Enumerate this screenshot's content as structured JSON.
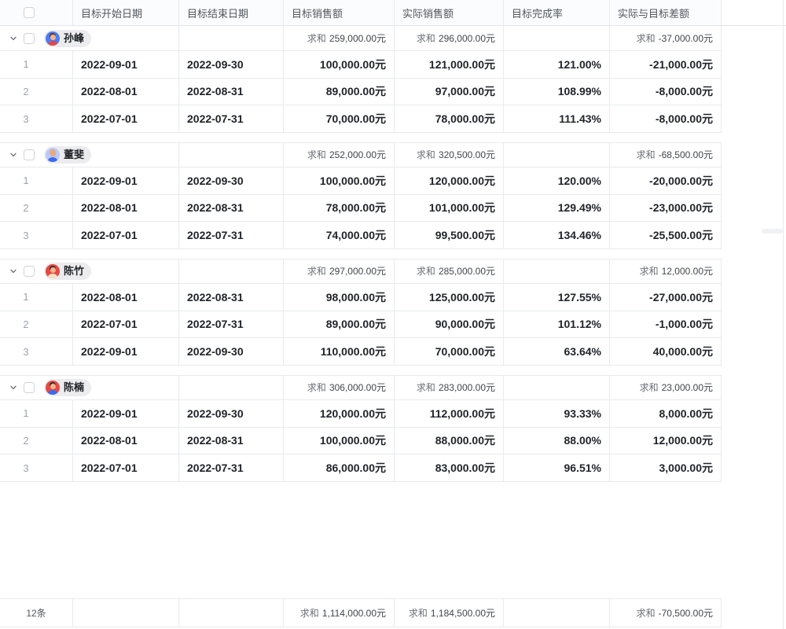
{
  "table": {
    "header": {
      "columns": [
        "目标开始日期",
        "目标结束日期",
        "目标销售额",
        "实际销售额",
        "目标完成率",
        "实际与目标差额"
      ]
    },
    "sum_label": "求和",
    "groups": [
      {
        "name": "孙峰",
        "avatar": {
          "bg": "#4a7cf7",
          "skin": "#f2b58a",
          "hair": "#5c3a2e",
          "body": "#e04947"
        },
        "sums": {
          "target": "259,000.00元",
          "actual": "296,000.00元",
          "rate": "",
          "diff": "-37,000.00元"
        },
        "rows": [
          {
            "num": "1",
            "start": "2022-09-01",
            "end": "2022-09-30",
            "target": "100,000.00元",
            "actual": "121,000.00元",
            "rate": "121.00%",
            "diff": "-21,000.00元"
          },
          {
            "num": "2",
            "start": "2022-08-01",
            "end": "2022-08-31",
            "target": "89,000.00元",
            "actual": "97,000.00元",
            "rate": "108.99%",
            "diff": "-8,000.00元"
          },
          {
            "num": "3",
            "start": "2022-07-01",
            "end": "2022-07-31",
            "target": "70,000.00元",
            "actual": "78,000.00元",
            "rate": "111.43%",
            "diff": "-8,000.00元"
          }
        ]
      },
      {
        "name": "董斐",
        "avatar": {
          "bg": "#b9c9f8",
          "skin": "#e8a87f",
          "hair": "#e8a87f",
          "body": "#3b6af2"
        },
        "sums": {
          "target": "252,000.00元",
          "actual": "320,500.00元",
          "rate": "",
          "diff": "-68,500.00元"
        },
        "rows": [
          {
            "num": "1",
            "start": "2022-09-01",
            "end": "2022-09-30",
            "target": "100,000.00元",
            "actual": "120,000.00元",
            "rate": "120.00%",
            "diff": "-20,000.00元"
          },
          {
            "num": "2",
            "start": "2022-08-01",
            "end": "2022-08-31",
            "target": "78,000.00元",
            "actual": "101,000.00元",
            "rate": "129.49%",
            "diff": "-23,000.00元"
          },
          {
            "num": "3",
            "start": "2022-07-01",
            "end": "2022-07-31",
            "target": "74,000.00元",
            "actual": "99,500.00元",
            "rate": "134.46%",
            "diff": "-25,500.00元"
          }
        ]
      },
      {
        "name": "陈竹",
        "avatar": {
          "bg": "#e64844",
          "skin": "#f2b58a",
          "hair": "#3a2f2c",
          "body": "#f6e3c4"
        },
        "sums": {
          "target": "297,000.00元",
          "actual": "285,000.00元",
          "rate": "",
          "diff": "12,000.00元"
        },
        "rows": [
          {
            "num": "1",
            "start": "2022-08-01",
            "end": "2022-08-31",
            "target": "98,000.00元",
            "actual": "125,000.00元",
            "rate": "127.55%",
            "diff": "-27,000.00元"
          },
          {
            "num": "2",
            "start": "2022-07-01",
            "end": "2022-07-31",
            "target": "89,000.00元",
            "actual": "90,000.00元",
            "rate": "101.12%",
            "diff": "-1,000.00元"
          },
          {
            "num": "3",
            "start": "2022-09-01",
            "end": "2022-09-30",
            "target": "110,000.00元",
            "actual": "70,000.00元",
            "rate": "63.64%",
            "diff": "40,000.00元"
          }
        ]
      },
      {
        "name": "陈楠",
        "avatar": {
          "bg": "#e64844",
          "skin": "#f2b58a",
          "hair": "#3a2f2c",
          "body": "#3b6af2"
        },
        "sums": {
          "target": "306,000.00元",
          "actual": "283,000.00元",
          "rate": "",
          "diff": "23,000.00元"
        },
        "rows": [
          {
            "num": "1",
            "start": "2022-09-01",
            "end": "2022-09-30",
            "target": "120,000.00元",
            "actual": "112,000.00元",
            "rate": "93.33%",
            "diff": "8,000.00元"
          },
          {
            "num": "2",
            "start": "2022-08-01",
            "end": "2022-08-31",
            "target": "100,000.00元",
            "actual": "88,000.00元",
            "rate": "88.00%",
            "diff": "12,000.00元"
          },
          {
            "num": "3",
            "start": "2022-07-01",
            "end": "2022-07-31",
            "target": "86,000.00元",
            "actual": "83,000.00元",
            "rate": "96.51%",
            "diff": "3,000.00元"
          }
        ]
      }
    ],
    "footer": {
      "count": "12条",
      "target": "1,114,000.00元",
      "actual": "1,184,500.00元",
      "diff": "-70,500.00元"
    }
  }
}
